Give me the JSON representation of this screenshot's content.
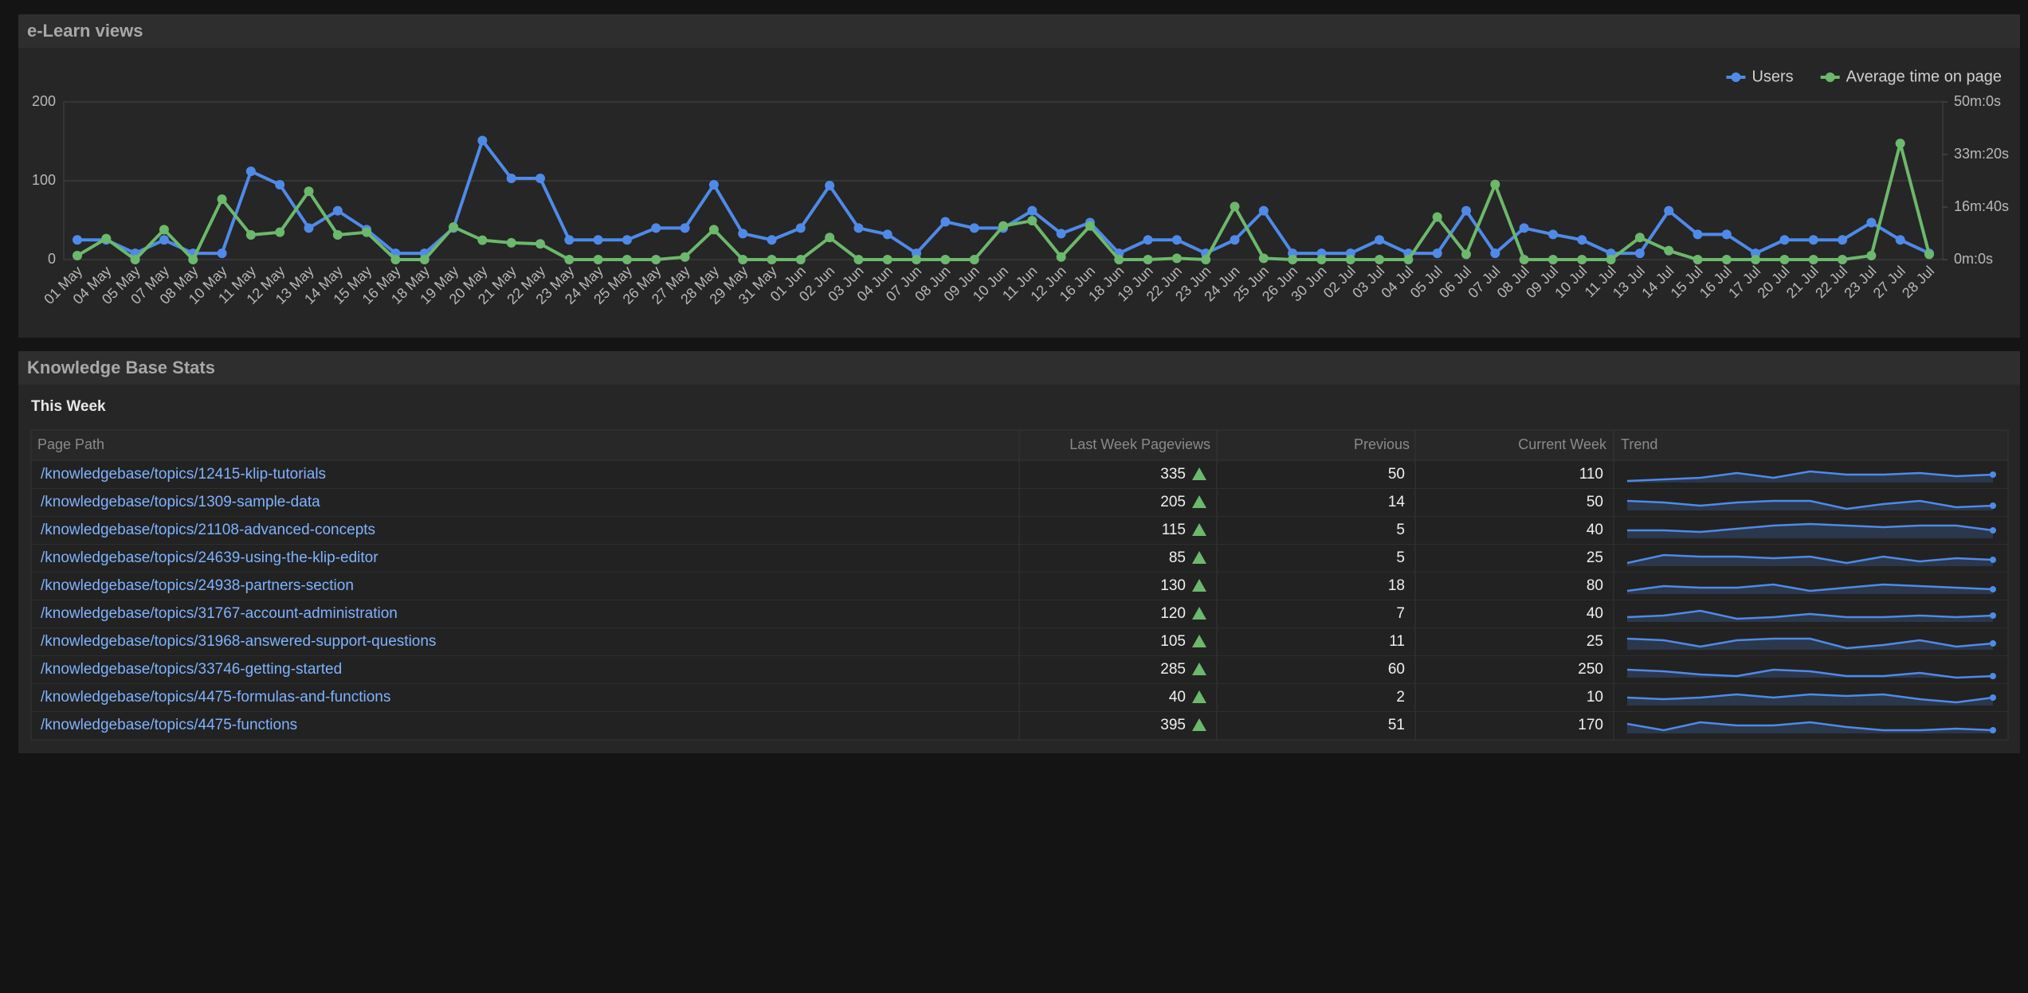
{
  "panels": {
    "chart_title": "e-Learn views",
    "table_title": "Knowledge Base Stats"
  },
  "chart_data": {
    "type": "line",
    "categories": [
      "01 May",
      "04 May",
      "05 May",
      "07 May",
      "08 May",
      "10 May",
      "11 May",
      "12 May",
      "13 May",
      "14 May",
      "15 May",
      "16 May",
      "18 May",
      "19 May",
      "20 May",
      "21 May",
      "22 May",
      "23 May",
      "24 May",
      "25 May",
      "26 May",
      "27 May",
      "28 May",
      "29 May",
      "31 May",
      "01 Jun",
      "02 Jun",
      "03 Jun",
      "04 Jun",
      "07 Jun",
      "08 Jun",
      "09 Jun",
      "10 Jun",
      "11 Jun",
      "12 Jun",
      "16 Jun",
      "18 Jun",
      "19 Jun",
      "22 Jun",
      "23 Jun",
      "24 Jun",
      "25 Jun",
      "26 Jun",
      "30 Jun",
      "02 Jul",
      "03 Jul",
      "04 Jul",
      "05 Jul",
      "06 Jul",
      "07 Jul",
      "08 Jul",
      "09 Jul",
      "10 Jul",
      "11 Jul",
      "13 Jul",
      "14 Jul",
      "15 Jul",
      "16 Jul",
      "17 Jul",
      "20 Jul",
      "21 Jul",
      "22 Jul",
      "23 Jul",
      "27 Jul",
      "28 Jul"
    ],
    "series": [
      {
        "name": "Users",
        "color": "#4f8ae8",
        "values": [
          25,
          25,
          8,
          25,
          8,
          8,
          112,
          95,
          40,
          62,
          38,
          8,
          8,
          40,
          151,
          103,
          103,
          25,
          25,
          25,
          40,
          40,
          95,
          33,
          25,
          40,
          94,
          40,
          32,
          8,
          48,
          40,
          40,
          62,
          33,
          47,
          8,
          25,
          25,
          8,
          25,
          62,
          8,
          8,
          8,
          25,
          8,
          8,
          62,
          8,
          40,
          32,
          25,
          8,
          8,
          62,
          32,
          32,
          8,
          25,
          25,
          25,
          47,
          25,
          8
        ]
      },
      {
        "name": "Average time on page",
        "color": "#6cb86c",
        "axis": "y2",
        "values": [
          75,
          400,
          0,
          570,
          0,
          1150,
          470,
          520,
          1300,
          470,
          520,
          0,
          0,
          620,
          370,
          320,
          300,
          0,
          0,
          0,
          0,
          50,
          570,
          0,
          0,
          0,
          420,
          0,
          0,
          0,
          0,
          0,
          640,
          740,
          50,
          640,
          0,
          0,
          25,
          0,
          1010,
          25,
          0,
          0,
          0,
          0,
          0,
          810,
          100,
          1430,
          0,
          0,
          0,
          0,
          420,
          170,
          0,
          0,
          0,
          0,
          0,
          0,
          75,
          2210,
          100
        ]
      }
    ],
    "ylim": [
      0,
      200
    ],
    "yticks": [
      0,
      100,
      200
    ],
    "y2lim": [
      0,
      3000
    ],
    "y2ticks": [
      {
        "value": 0,
        "label": "0m:0s"
      },
      {
        "value": 1000,
        "label": "16m:40s"
      },
      {
        "value": 2000,
        "label": "33m:20s"
      },
      {
        "value": 3000,
        "label": "50m:0s"
      }
    ],
    "grid": true,
    "legend": "top-right"
  },
  "table": {
    "subtitle": "This Week",
    "columns": [
      "Page Path",
      "Last Week Pageviews",
      "Previous",
      "Current Week",
      "Trend"
    ],
    "rows": [
      {
        "path": "/knowledgebase/topics/12415-klip-tutorials",
        "last_week": 335,
        "previous": 50,
        "current": 110,
        "trend": [
          1,
          2,
          3,
          6,
          3,
          7,
          5,
          5,
          6,
          4,
          5
        ]
      },
      {
        "path": "/knowledgebase/topics/1309-sample-data",
        "last_week": 205,
        "previous": 14,
        "current": 50,
        "trend": [
          6,
          5,
          3,
          5,
          6,
          6,
          1,
          4,
          6,
          2,
          3
        ]
      },
      {
        "path": "/knowledgebase/topics/21108-advanced-concepts",
        "last_week": 115,
        "previous": 5,
        "current": 40,
        "trend": [
          5,
          5,
          4,
          6,
          8,
          9,
          8,
          7,
          8,
          8,
          5
        ]
      },
      {
        "path": "/knowledgebase/topics/24639-using-the-klip-editor",
        "last_week": 85,
        "previous": 5,
        "current": 25,
        "trend": [
          2,
          7,
          6,
          6,
          5,
          6,
          2,
          6,
          3,
          5,
          4
        ]
      },
      {
        "path": "/knowledgebase/topics/24938-partners-section",
        "last_week": 130,
        "previous": 18,
        "current": 80,
        "trend": [
          2,
          5,
          4,
          4,
          6,
          2,
          4,
          6,
          5,
          4,
          3
        ]
      },
      {
        "path": "/knowledgebase/topics/31767-account-administration",
        "last_week": 120,
        "previous": 7,
        "current": 40,
        "trend": [
          3,
          4,
          7,
          2,
          3,
          5,
          3,
          3,
          4,
          3,
          4
        ]
      },
      {
        "path": "/knowledgebase/topics/31968-answered-support-questions",
        "last_week": 105,
        "previous": 11,
        "current": 25,
        "trend": [
          7,
          6,
          2,
          6,
          7,
          7,
          1,
          3,
          6,
          2,
          4
        ]
      },
      {
        "path": "/knowledgebase/topics/33746-getting-started",
        "last_week": 285,
        "previous": 60,
        "current": 250,
        "trend": [
          5,
          4,
          2,
          1,
          5,
          4,
          1,
          1,
          3,
          0,
          1
        ]
      },
      {
        "path": "/knowledgebase/topics/4475-formulas-and-functions",
        "last_week": 40,
        "previous": 2,
        "current": 10,
        "trend": [
          5,
          4,
          5,
          7,
          5,
          7,
          6,
          7,
          4,
          2,
          5
        ]
      },
      {
        "path": "/knowledgebase/topics/4475-functions",
        "last_week": 395,
        "previous": 51,
        "current": 170,
        "trend": [
          6,
          2,
          7,
          5,
          5,
          7,
          4,
          2,
          2,
          3,
          2
        ]
      }
    ]
  }
}
